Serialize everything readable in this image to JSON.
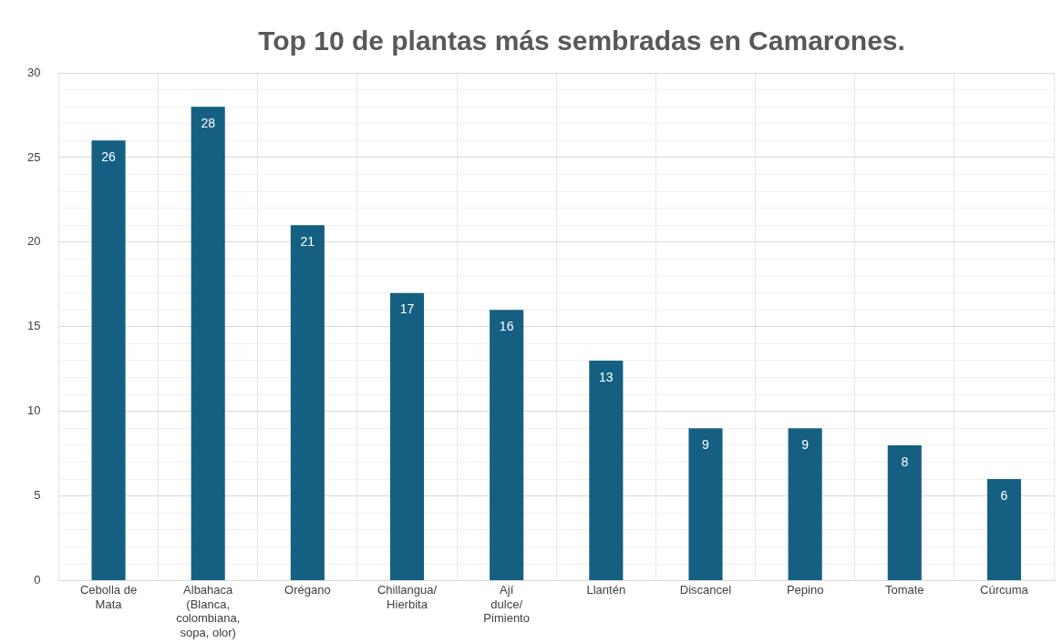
{
  "chart_data": {
    "type": "bar",
    "title": "Top 10 de plantas más sembradas en Camarones.",
    "categories": [
      "Cebolla de Mata",
      "Albahaca (Blanca, colombiana, sopa, olor)",
      "Orégano",
      "Chillangua/Hierbita",
      "Ají dulce/Pimiento",
      "Llantén",
      "Discancel",
      "Pepino",
      "Tomate",
      "Cúrcuma"
    ],
    "values": [
      26,
      28,
      21,
      17,
      16,
      13,
      9,
      9,
      8,
      6
    ],
    "color": "#156082",
    "ylim": [
      0,
      30
    ],
    "yticks": [
      0,
      {
        "value": 1,
        "label": null
      },
      {
        "value": 2,
        "label": null
      },
      {
        "value": 3,
        "label": null
      },
      {
        "value": 4,
        "label": null
      },
      5,
      {
        "value": 6,
        "label": null
      },
      {
        "value": 7,
        "label": null
      },
      {
        "value": 8,
        "label": null
      },
      {
        "value": 9,
        "label": null
      },
      10,
      {
        "value": 11,
        "label": null
      },
      {
        "value": 12,
        "label": null
      },
      {
        "value": 13,
        "label": null
      },
      {
        "value": 14,
        "label": null
      },
      15,
      {
        "value": 16,
        "label": null
      },
      {
        "value": 17,
        "label": null
      },
      {
        "value": 18,
        "label": null
      },
      {
        "value": 19,
        "label": null
      },
      20,
      {
        "value": 21,
        "label": null
      },
      {
        "value": 22,
        "label": null
      },
      {
        "value": 23,
        "label": null
      },
      {
        "value": 24,
        "label": null
      },
      25,
      {
        "value": 26,
        "label": null
      },
      {
        "value": 27,
        "label": null
      },
      {
        "value": 28,
        "label": null
      },
      {
        "value": 29,
        "label": null
      },
      30
    ],
    "grid": true,
    "data_labels": true
  }
}
